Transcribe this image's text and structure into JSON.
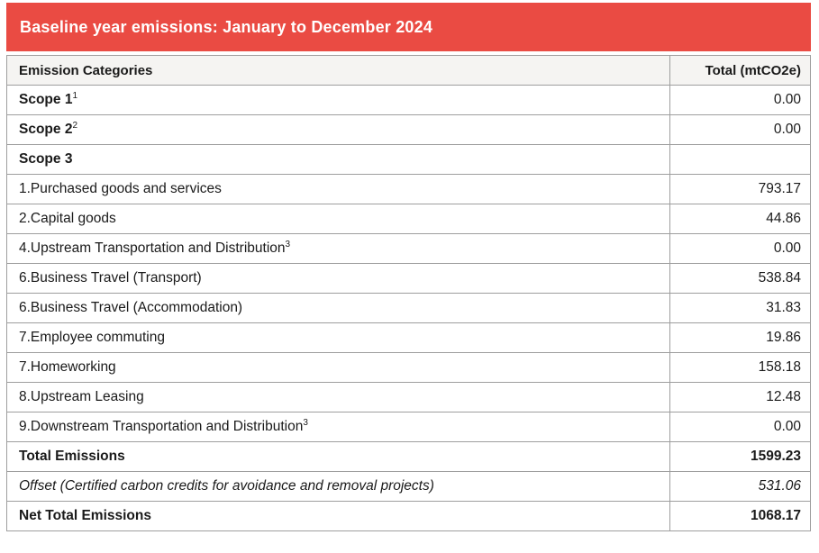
{
  "banner": {
    "title": "Baseline year emissions: January to December 2024"
  },
  "table": {
    "header": {
      "category": "Emission Categories",
      "total": "Total (mtCO2e)"
    },
    "rows": [
      {
        "label": "Scope 1",
        "sup": "1",
        "value": "0.00",
        "style": "scope"
      },
      {
        "label": "Scope 2",
        "sup": "2",
        "value": "0.00",
        "style": "scope"
      },
      {
        "label": "Scope 3",
        "sup": "",
        "value": "",
        "style": "scope"
      },
      {
        "label": "1.Purchased goods and services",
        "sup": "",
        "value": "793.17",
        "style": "normal"
      },
      {
        "label": "2.Capital goods",
        "sup": "",
        "value": "44.86",
        "style": "normal"
      },
      {
        "label": "4.Upstream Transportation and Distribution",
        "sup": "3",
        "value": "0.00",
        "style": "normal"
      },
      {
        "label": "6.Business Travel (Transport)",
        "sup": "",
        "value": "538.84",
        "style": "normal"
      },
      {
        "label": "6.Business Travel (Accommodation)",
        "sup": "",
        "value": "31.83",
        "style": "normal"
      },
      {
        "label": "7.Employee commuting",
        "sup": "",
        "value": "19.86",
        "style": "normal"
      },
      {
        "label": "7.Homeworking",
        "sup": "",
        "value": "158.18",
        "style": "normal"
      },
      {
        "label": "8.Upstream Leasing",
        "sup": "",
        "value": "12.48",
        "style": "normal"
      },
      {
        "label": "9.Downstream Transportation and Distribution",
        "sup": "3",
        "value": "0.00",
        "style": "normal"
      },
      {
        "label": "Total Emissions",
        "sup": "",
        "value": "1599.23",
        "style": "total"
      },
      {
        "label": "Offset (Certified carbon credits for avoidance and removal projects)",
        "sup": "",
        "value": "531.06",
        "style": "offset"
      },
      {
        "label": "Net Total Emissions",
        "sup": "",
        "value": "1068.17",
        "style": "total"
      }
    ]
  },
  "colors": {
    "banner_bg": "#ea4b43",
    "banner_text": "#ffffff",
    "header_bg": "#f5f4f2",
    "border": "#9e9e9e",
    "text": "#1a1a1a"
  }
}
